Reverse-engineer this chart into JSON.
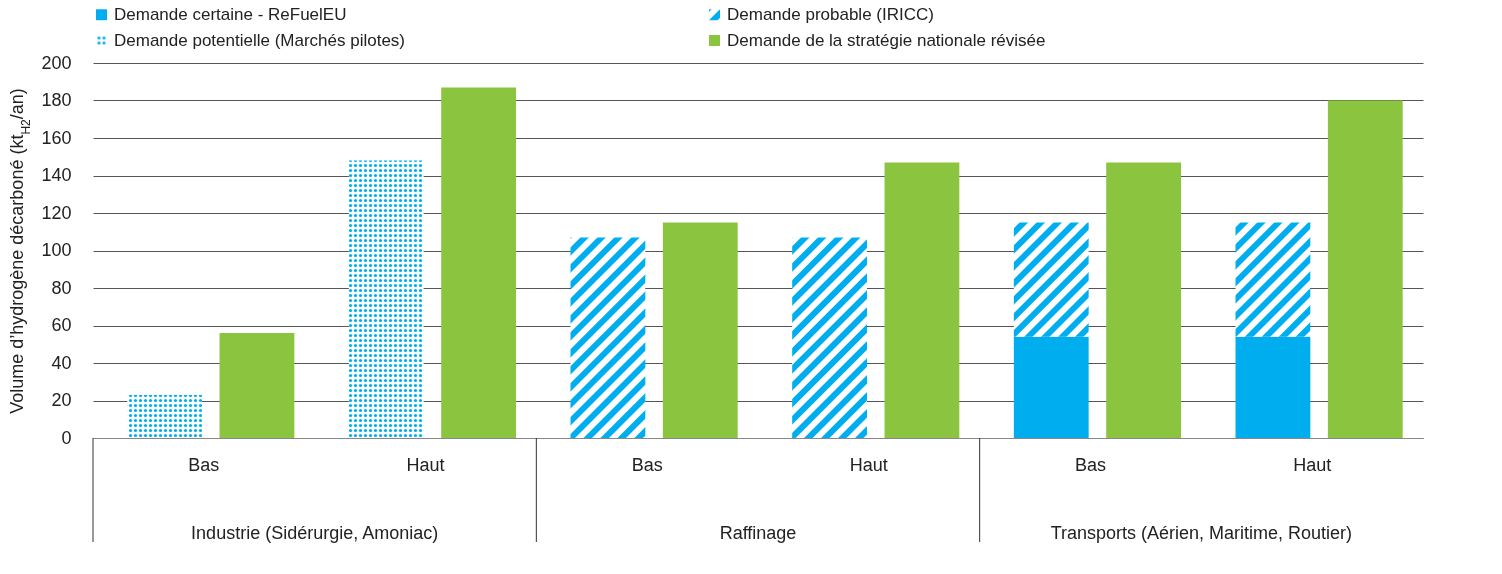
{
  "chart_data": {
    "type": "bar",
    "categories": [
      "Bas",
      "Haut",
      "Bas",
      "Haut",
      "Bas",
      "Haut"
    ],
    "annotations": [
      "Industrie (Sidérurgie, Amoniac)",
      "Raffinage",
      "Transports (Aérien, Maritime, Routier)"
    ],
    "ylabel": "Volume d’hydrogène décarboné (kt$_{H2}$/an)",
    "series": [
      {
        "name": "Demande certaine - ReFuelEU",
        "color": "#00aeef",
        "values": [
          null,
          null,
          null,
          null,
          54,
          54
        ]
      },
      {
        "name": "Demande probable (IRICC)",
        "color": "#00aeef",
        "values": [
          null,
          null,
          107,
          107,
          61,
          61
        ],
        "base": [
          null,
          null,
          0,
          0,
          54,
          54
        ]
      },
      {
        "name": "Demande potentielle (Marchés pilotes)",
        "color": "#00aeef",
        "values": [
          23,
          148,
          null,
          null,
          null,
          null
        ]
      },
      {
        "name": "Demande de la stratégie nationale révisée",
        "color": "#8bc53f",
        "values": [
          56,
          187,
          115,
          147,
          147,
          180
        ]
      }
    ],
    "ylim": [
      0,
      200
    ],
    "yticks": [
      0,
      20,
      40,
      60,
      80,
      100,
      120,
      140,
      160,
      180,
      200
    ],
    "grid": "y",
    "legend": "top"
  }
}
